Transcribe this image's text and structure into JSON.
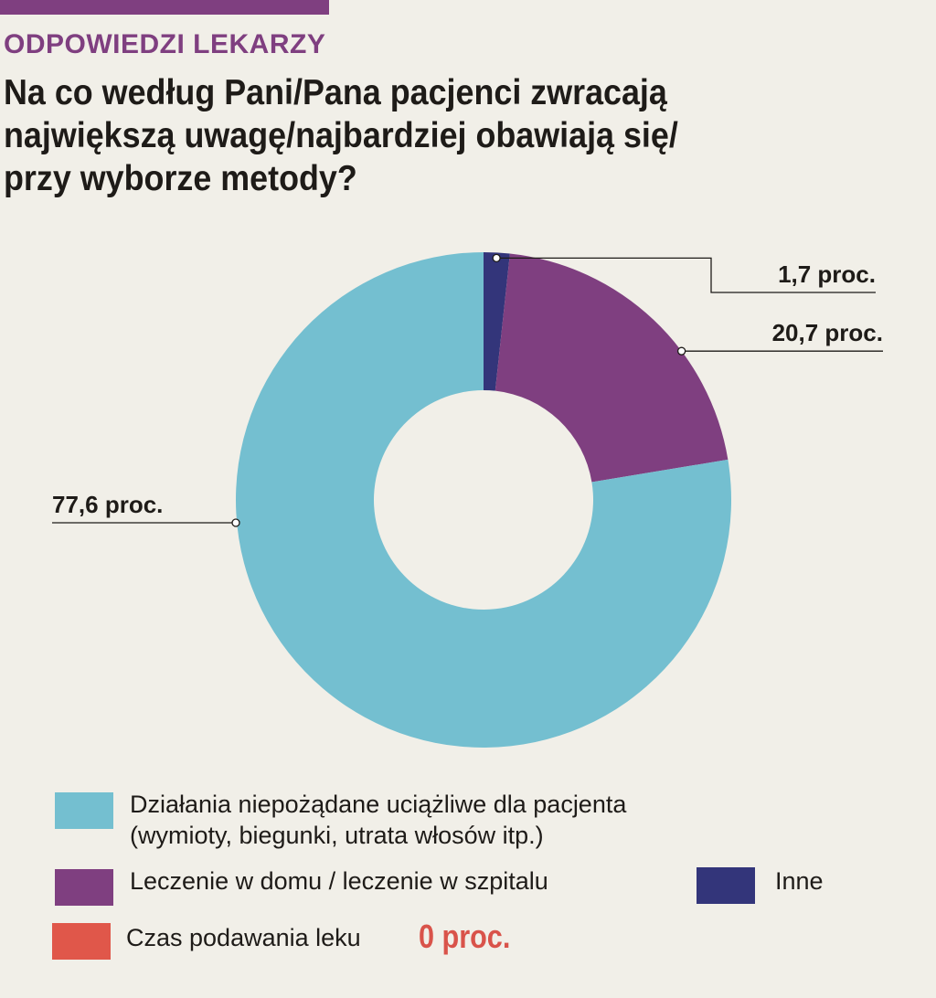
{
  "header": {
    "section_label": "ODPOWIEDZI LEKARZY",
    "title_lines": [
      "Na co według Pani/Pana pacjenci zwracają",
      "największą uwagę/najbardziej obawiają się/",
      "przy wyborze metody?"
    ]
  },
  "colors": {
    "accent": "#7f3f80",
    "background": "#f1efe8",
    "text": "#1e1b18",
    "zero_value": "#d9534a"
  },
  "chart_data": {
    "type": "pie",
    "donut": true,
    "slices": [
      {
        "label": "Inne",
        "value": 1.7,
        "value_label": "1,7 proc.",
        "color": "#33357a"
      },
      {
        "label": "Leczenie w domu / leczenie w szpitalu",
        "value": 20.7,
        "value_label": "20,7 proc.",
        "color": "#7f3f80"
      },
      {
        "label": "Działania niepożądane uciążliwe dla pacjenta (wymioty, biegunki, utrata włosów itp.)",
        "value": 77.6,
        "value_label": "77,6 proc.",
        "color": "#74bfd0"
      }
    ],
    "start": "top",
    "direction": "clockwise"
  },
  "legend": {
    "items": [
      {
        "text_lines": [
          "Działania niepożądane uciążliwe dla pacjenta",
          "(wymioty, biegunki, utrata włosów itp.)"
        ],
        "color": "#74bfd0"
      },
      {
        "text_lines": [
          "Leczenie w domu / leczenie w szpitalu"
        ],
        "color": "#7f3f80"
      },
      {
        "text_lines": [
          "Inne"
        ],
        "color": "#33357a"
      },
      {
        "text_lines": [
          "Czas podawania leku"
        ],
        "color": "#e0574a",
        "value": "0 proc."
      }
    ]
  }
}
